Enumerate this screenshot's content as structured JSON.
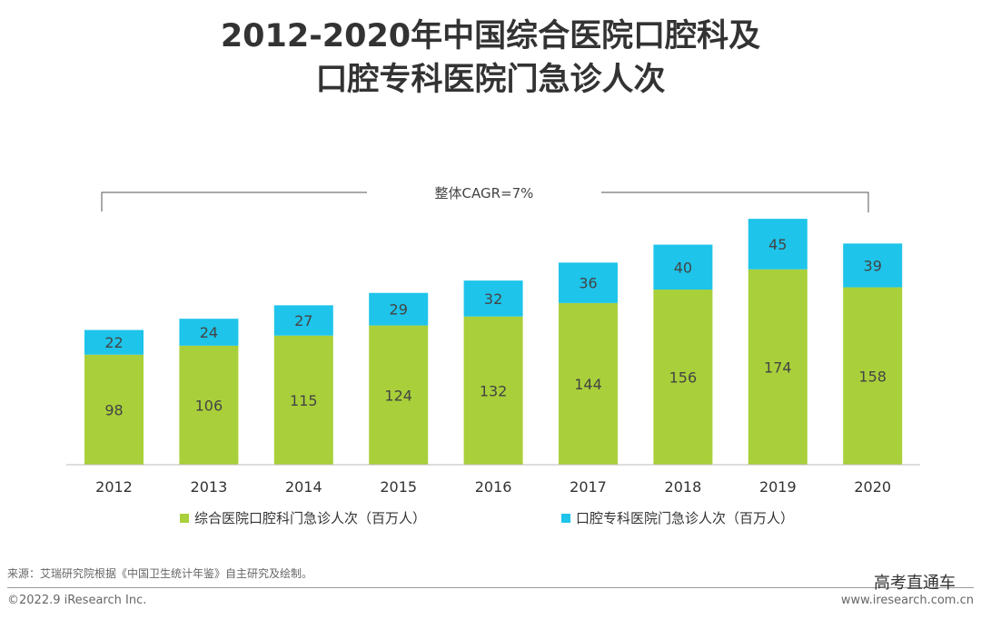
{
  "title_line1": "2012-2020年中国综合医院口腔科及",
  "title_line2": "口腔专科医院门急诊人次",
  "chart_data": {
    "type": "stacked-bar",
    "categories": [
      "2012",
      "2013",
      "2014",
      "2015",
      "2016",
      "2017",
      "2018",
      "2019",
      "2020"
    ],
    "series": [
      {
        "name": "综合医院口腔科门急诊人次（百万人）",
        "color": "#a9d03a",
        "values": [
          98,
          106,
          115,
          124,
          132,
          144,
          156,
          174,
          158
        ]
      },
      {
        "name": "口腔专科医院门急诊人次（百万人）",
        "color": "#1ec4ea",
        "values": [
          22,
          24,
          27,
          29,
          32,
          36,
          40,
          45,
          39
        ]
      }
    ],
    "annotation": "整体CAGR=7%",
    "legend": "bottom",
    "grid": false
  },
  "footer": {
    "source": "来源：艾瑞研究院根据《中国卫生统计年鉴》自主研究及绘制。",
    "copyright": "©2022.9 iResearch Inc.",
    "website": "www.iresearch.com.cn",
    "watermark": "高考直通车"
  }
}
